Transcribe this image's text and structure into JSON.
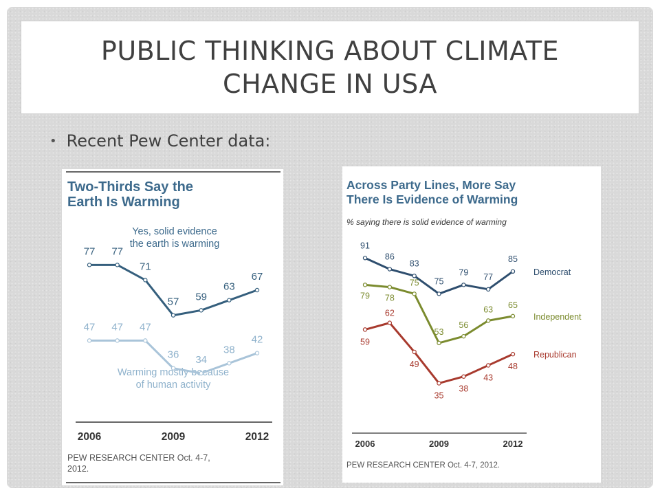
{
  "slide": {
    "title": "PUBLIC THINKING ABOUT CLIMATE CHANGE IN USA",
    "bullet": "Recent Pew Center data:"
  },
  "chart_data": [
    {
      "type": "line",
      "title": "Two-Thirds Say the Earth Is Warming",
      "x_ticks": [
        "2006",
        "2009",
        "2012"
      ],
      "x": [
        2006,
        2007,
        2008,
        2009,
        2010,
        2011,
        2012
      ],
      "series": [
        {
          "name": "Yes, solid evidence the earth is warming",
          "color": "#355f7d",
          "values": [
            77,
            77,
            71,
            57,
            59,
            63,
            67
          ]
        },
        {
          "name": "Warming mostly because of human activity",
          "color": "#a9c4d9",
          "values": [
            47,
            47,
            47,
            36,
            34,
            38,
            42
          ]
        }
      ],
      "ylim": [
        25,
        85
      ],
      "source": "PEW RESEARCH CENTER Oct. 4-7, 2012."
    },
    {
      "type": "line",
      "title": "Across Party Lines, More Say There Is Evidence of Warming",
      "subtitle": "% saying there is solid evidence of warming",
      "x_ticks": [
        "2006",
        "2009",
        "2012"
      ],
      "x": [
        2006,
        2007,
        2008,
        2009,
        2010,
        2011,
        2012
      ],
      "series": [
        {
          "name": "Democrat",
          "color": "#2e4e6e",
          "values": [
            91,
            86,
            83,
            75,
            79,
            77,
            85
          ]
        },
        {
          "name": "Independent",
          "color": "#7b8b2e",
          "values": [
            79,
            78,
            75,
            53,
            56,
            63,
            65
          ]
        },
        {
          "name": "Republican",
          "color": "#a83a2e",
          "values": [
            59,
            62,
            49,
            35,
            38,
            43,
            48
          ]
        }
      ],
      "ylim": [
        25,
        100
      ],
      "source": "PEW RESEARCH CENTER Oct. 4-7, 2012."
    }
  ]
}
